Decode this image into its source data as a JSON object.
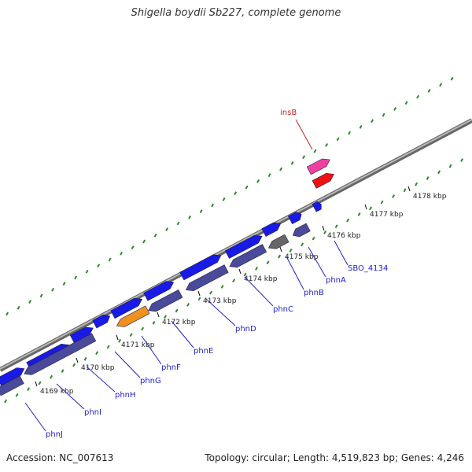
{
  "title": "Shigella boydii Sb227, complete genome",
  "footer": {
    "accession": "Accession: NC_007613",
    "summary": "Topology: circular; Length: 4,519,823 bp; Genes: 4,246"
  },
  "colors": {
    "background": "#ffffff",
    "backbone": "#888888",
    "forward_gene": "#1a1ae6",
    "reverse_gene": "#4a4a9a",
    "highlighted_gene": "#f09020",
    "pseudo_gene": "#666666",
    "insertion_forward": "#f040a0",
    "insertion_reverse": "#ee1111",
    "tick": "#2a8a2a",
    "forward_label": "#2222cc",
    "insertion_label": "#cc2222"
  },
  "scale_ticks": [
    "4169 kbp",
    "4170 kbp",
    "4171 kbp",
    "4172 kbp",
    "4173 kbp",
    "4174 kbp",
    "4175 kbp",
    "4176 kbp",
    "4177 kbp",
    "4178 kbp"
  ],
  "gene_labels": [
    {
      "name": "phnJ",
      "color": "blue"
    },
    {
      "name": "phnI",
      "color": "blue"
    },
    {
      "name": "phnH",
      "color": "blue"
    },
    {
      "name": "phnG",
      "color": "blue"
    },
    {
      "name": "phnF",
      "color": "blue"
    },
    {
      "name": "phnE",
      "color": "blue"
    },
    {
      "name": "phnD",
      "color": "blue"
    },
    {
      "name": "phnC",
      "color": "blue"
    },
    {
      "name": "phnB",
      "color": "blue"
    },
    {
      "name": "phnA",
      "color": "blue"
    },
    {
      "name": "SBO_4134",
      "color": "blue"
    },
    {
      "name": "insB",
      "color": "red"
    }
  ]
}
